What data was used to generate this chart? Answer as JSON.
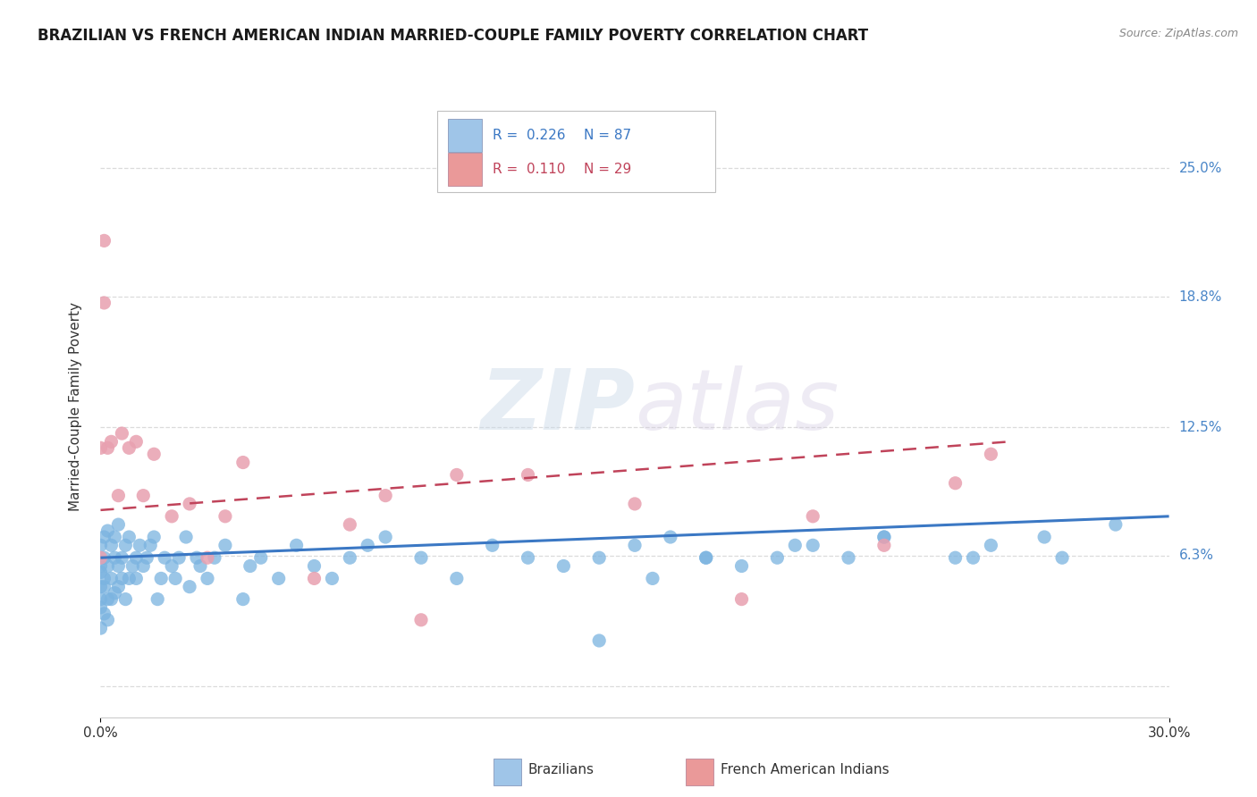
{
  "title": "BRAZILIAN VS FRENCH AMERICAN INDIAN MARRIED-COUPLE FAMILY POVERTY CORRELATION CHART",
  "source": "Source: ZipAtlas.com",
  "ylabel": "Married-Couple Family Poverty",
  "xlim": [
    0.0,
    0.3
  ],
  "ylim": [
    -0.015,
    0.285
  ],
  "ytick_values": [
    0.0,
    0.063,
    0.125,
    0.188,
    0.25
  ],
  "ytick_labels": [
    "",
    "6.3%",
    "12.5%",
    "18.8%",
    "25.0%"
  ],
  "xtick_values": [
    0.0,
    0.3
  ],
  "xtick_labels": [
    "0.0%",
    "30.0%"
  ],
  "watermark_line1": "ZIP",
  "watermark_line2": "atlas",
  "series1_color": "#7ab3e0",
  "series2_color": "#e8a0b0",
  "series1_R": "0.226",
  "series1_N": "87",
  "series2_R": "0.110",
  "series2_N": "29",
  "series1_label": "Brazilians",
  "series2_label": "French American Indians",
  "legend_box_color_blue": "#9fc5e8",
  "legend_box_color_pink": "#ea9999",
  "line1_color": "#3b78c4",
  "line2_color": "#c0435a",
  "line1_x": [
    0.0,
    0.3
  ],
  "line1_y": [
    0.062,
    0.082
  ],
  "line2_x": [
    0.0,
    0.255
  ],
  "line2_y": [
    0.085,
    0.118
  ],
  "right_label_color": "#4a86c8",
  "grid_color": "#d8d8d8",
  "series1_x": [
    0.0,
    0.0,
    0.0,
    0.0,
    0.0,
    0.0,
    0.0,
    0.001,
    0.001,
    0.001,
    0.001,
    0.001,
    0.002,
    0.002,
    0.002,
    0.002,
    0.003,
    0.003,
    0.003,
    0.004,
    0.004,
    0.004,
    0.005,
    0.005,
    0.005,
    0.006,
    0.006,
    0.007,
    0.007,
    0.008,
    0.008,
    0.009,
    0.01,
    0.01,
    0.011,
    0.012,
    0.013,
    0.014,
    0.015,
    0.016,
    0.017,
    0.018,
    0.02,
    0.021,
    0.022,
    0.024,
    0.025,
    0.027,
    0.028,
    0.03,
    0.032,
    0.035,
    0.04,
    0.042,
    0.045,
    0.05,
    0.055,
    0.06,
    0.065,
    0.07,
    0.075,
    0.08,
    0.09,
    0.1,
    0.11,
    0.13,
    0.14,
    0.15,
    0.16,
    0.17,
    0.18,
    0.19,
    0.2,
    0.21,
    0.22,
    0.24,
    0.25,
    0.27,
    0.285,
    0.265,
    0.245,
    0.22,
    0.195,
    0.17,
    0.155,
    0.14,
    0.12
  ],
  "series1_y": [
    0.048,
    0.058,
    0.068,
    0.038,
    0.028,
    0.055,
    0.042,
    0.052,
    0.062,
    0.072,
    0.048,
    0.035,
    0.058,
    0.075,
    0.042,
    0.032,
    0.068,
    0.052,
    0.042,
    0.062,
    0.072,
    0.045,
    0.058,
    0.078,
    0.048,
    0.062,
    0.052,
    0.068,
    0.042,
    0.072,
    0.052,
    0.058,
    0.062,
    0.052,
    0.068,
    0.058,
    0.062,
    0.068,
    0.072,
    0.042,
    0.052,
    0.062,
    0.058,
    0.052,
    0.062,
    0.072,
    0.048,
    0.062,
    0.058,
    0.052,
    0.062,
    0.068,
    0.042,
    0.058,
    0.062,
    0.052,
    0.068,
    0.058,
    0.052,
    0.062,
    0.068,
    0.072,
    0.062,
    0.052,
    0.068,
    0.058,
    0.062,
    0.068,
    0.072,
    0.062,
    0.058,
    0.062,
    0.068,
    0.062,
    0.072,
    0.062,
    0.068,
    0.062,
    0.078,
    0.072,
    0.062,
    0.072,
    0.068,
    0.062,
    0.052,
    0.022,
    0.062
  ],
  "series2_x": [
    0.0,
    0.0,
    0.001,
    0.001,
    0.002,
    0.003,
    0.005,
    0.006,
    0.008,
    0.01,
    0.012,
    0.015,
    0.02,
    0.025,
    0.03,
    0.035,
    0.04,
    0.06,
    0.07,
    0.08,
    0.09,
    0.1,
    0.12,
    0.15,
    0.18,
    0.2,
    0.22,
    0.24,
    0.25
  ],
  "series2_y": [
    0.115,
    0.062,
    0.185,
    0.215,
    0.115,
    0.118,
    0.092,
    0.122,
    0.115,
    0.118,
    0.092,
    0.112,
    0.082,
    0.088,
    0.062,
    0.082,
    0.108,
    0.052,
    0.078,
    0.092,
    0.032,
    0.102,
    0.102,
    0.088,
    0.042,
    0.082,
    0.068,
    0.098,
    0.112
  ]
}
